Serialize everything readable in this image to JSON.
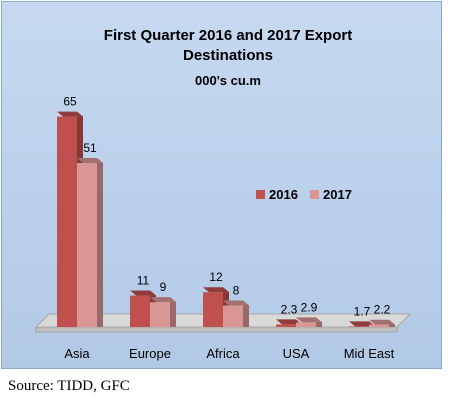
{
  "chart_data": {
    "type": "bar",
    "title_lines": [
      "First Quarter 2016 and 2017 Export",
      "Destinations"
    ],
    "subtitle": "000's cu.m",
    "categories": [
      "Asia",
      "Europe",
      "Africa",
      "USA",
      "Mid East"
    ],
    "series": [
      {
        "name": "2016",
        "values": [
          65,
          11,
          12,
          2.3,
          1.7
        ],
        "color": "#C0504D"
      },
      {
        "name": "2017",
        "values": [
          51,
          9,
          8,
          2.9,
          2.2
        ],
        "color": "#D99694"
      }
    ],
    "value_labels": [
      [
        "65",
        "11",
        "12",
        "2.3",
        "1.7"
      ],
      [
        "51",
        "9",
        "8",
        "2.9",
        "2.2"
      ]
    ],
    "ylim": [
      0,
      70
    ],
    "grid": false,
    "legend_position": "right",
    "background_color": "#B9CDE5",
    "floor_color": "#D9D9D9"
  },
  "source": "Source: TIDD, GFC"
}
